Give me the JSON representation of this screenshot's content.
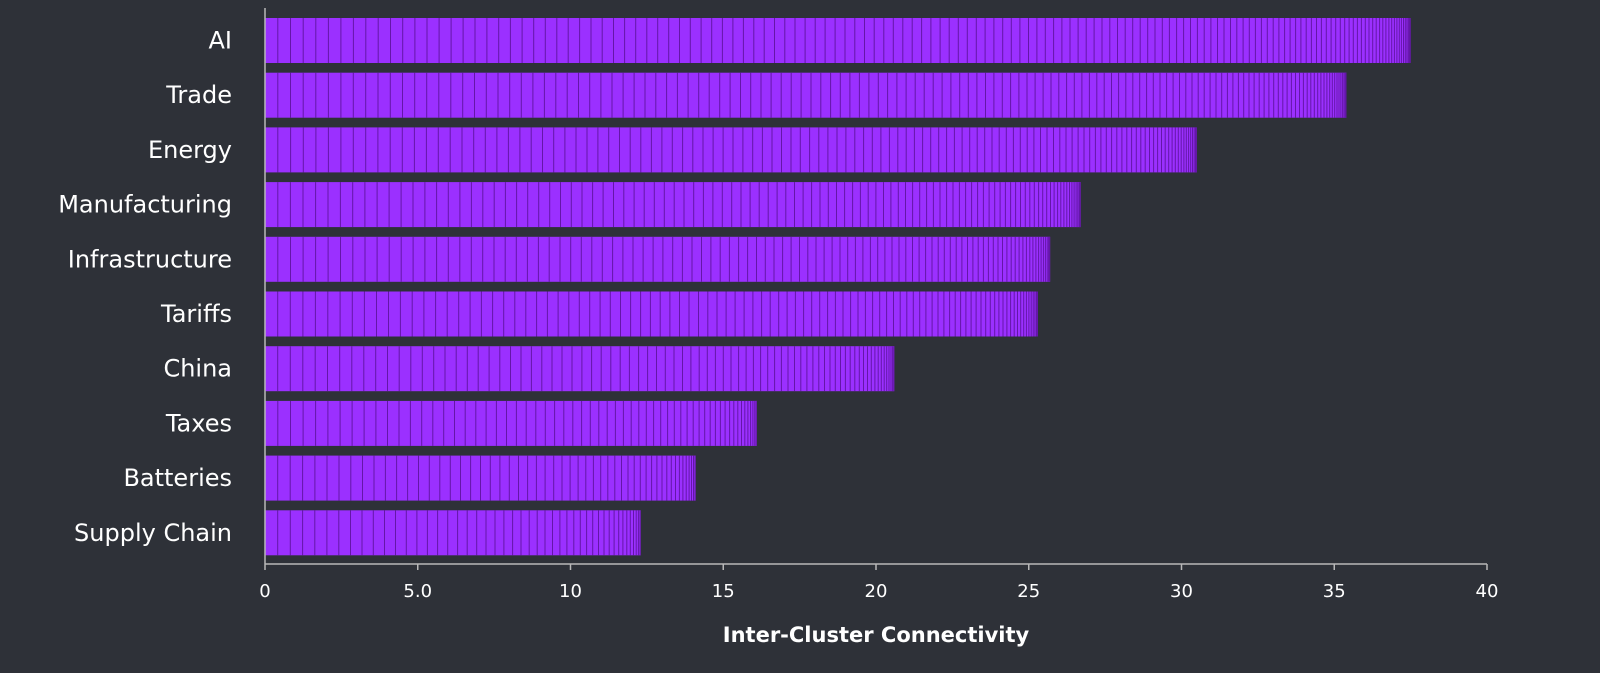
{
  "chart_data": {
    "type": "bar",
    "orientation": "horizontal",
    "categories": [
      "AI",
      "Trade",
      "Energy",
      "Manufacturing",
      "Infrastructure",
      "Tariffs",
      "China",
      "Taxes",
      "Batteries",
      "Supply Chain"
    ],
    "values": [
      37.5,
      35.4,
      30.5,
      26.7,
      25.7,
      25.3,
      20.6,
      16.1,
      14.1,
      12.3
    ],
    "xlabel": "Inter-Cluster Connectivity",
    "ylabel": "",
    "xlim": [
      0,
      40
    ],
    "xticks": [
      0,
      5,
      10,
      15,
      20,
      25,
      30,
      35,
      40
    ],
    "xtick_labels": [
      "0",
      "5.0",
      "10",
      "15",
      "20",
      "25",
      "30",
      "35",
      "40"
    ],
    "grid": false,
    "colors": {
      "background": "#2e3138",
      "bar": "#9b30ff",
      "segment_line": "#5a1299",
      "axis": "#b8b8b8",
      "text": "#ffffff"
    }
  }
}
